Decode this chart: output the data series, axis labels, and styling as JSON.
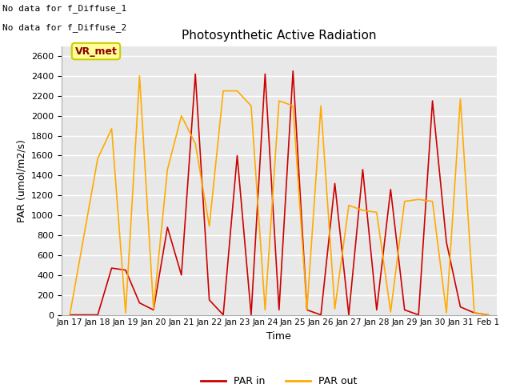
{
  "title": "Photosynthetic Active Radiation",
  "xlabel": "Time",
  "ylabel": "PAR (umol/m2/s)",
  "ylim": [
    0,
    2700
  ],
  "yticks": [
    0,
    200,
    400,
    600,
    800,
    1000,
    1200,
    1400,
    1600,
    1800,
    2000,
    2200,
    2400,
    2600
  ],
  "x_labels": [
    "Jan 17",
    "Jan 18",
    "Jan 19",
    "Jan 20",
    "Jan 21",
    "Jan 22",
    "Jan 23",
    "Jan 24",
    "Jan 25",
    "Jan 26",
    "Jan 27",
    "Jan 28",
    "Jan 29",
    "Jan 30",
    "Jan 31",
    "Feb 1"
  ],
  "par_in_color": "#cc0000",
  "par_out_color": "#ffaa00",
  "vr_met_label": "VR_met",
  "note1": "No data for f_Diffuse_1",
  "note2": "No data for f_Diffuse_2",
  "bg_color": "#e8e8e8",
  "legend_par_in": "PAR in",
  "legend_par_out": "PAR out",
  "par_in_x": [
    0,
    1,
    1.5,
    2,
    2.5,
    3,
    3.5,
    4,
    4.5,
    5,
    5.5,
    6,
    6.5,
    7,
    7.5,
    8,
    8.5,
    9,
    9.5,
    10,
    10.5,
    11,
    11.5,
    12,
    12.5,
    13,
    13.5,
    14,
    14.5,
    15
  ],
  "par_in_y": [
    0,
    0,
    470,
    450,
    120,
    50,
    880,
    400,
    2420,
    150,
    0,
    1600,
    0,
    2420,
    50,
    2450,
    50,
    0,
    1320,
    0,
    1460,
    50,
    1260,
    50,
    0,
    2150,
    730,
    80,
    20,
    0
  ],
  "par_out_x": [
    0,
    1,
    1.5,
    2,
    2.5,
    3,
    3.5,
    4,
    4.5,
    5,
    5.5,
    6,
    6.5,
    7,
    7.5,
    8,
    8.5,
    9,
    9.5,
    10,
    10.5,
    11,
    11.5,
    12,
    12.5,
    13,
    13.5,
    14,
    14.5,
    15
  ],
  "par_out_y": [
    0,
    1570,
    1870,
    20,
    2400,
    60,
    1460,
    2000,
    1720,
    890,
    2250,
    2250,
    2100,
    50,
    2150,
    2100,
    50,
    2100,
    60,
    1100,
    1050,
    1030,
    30,
    1140,
    1160,
    1140,
    20,
    2170,
    20,
    0
  ]
}
